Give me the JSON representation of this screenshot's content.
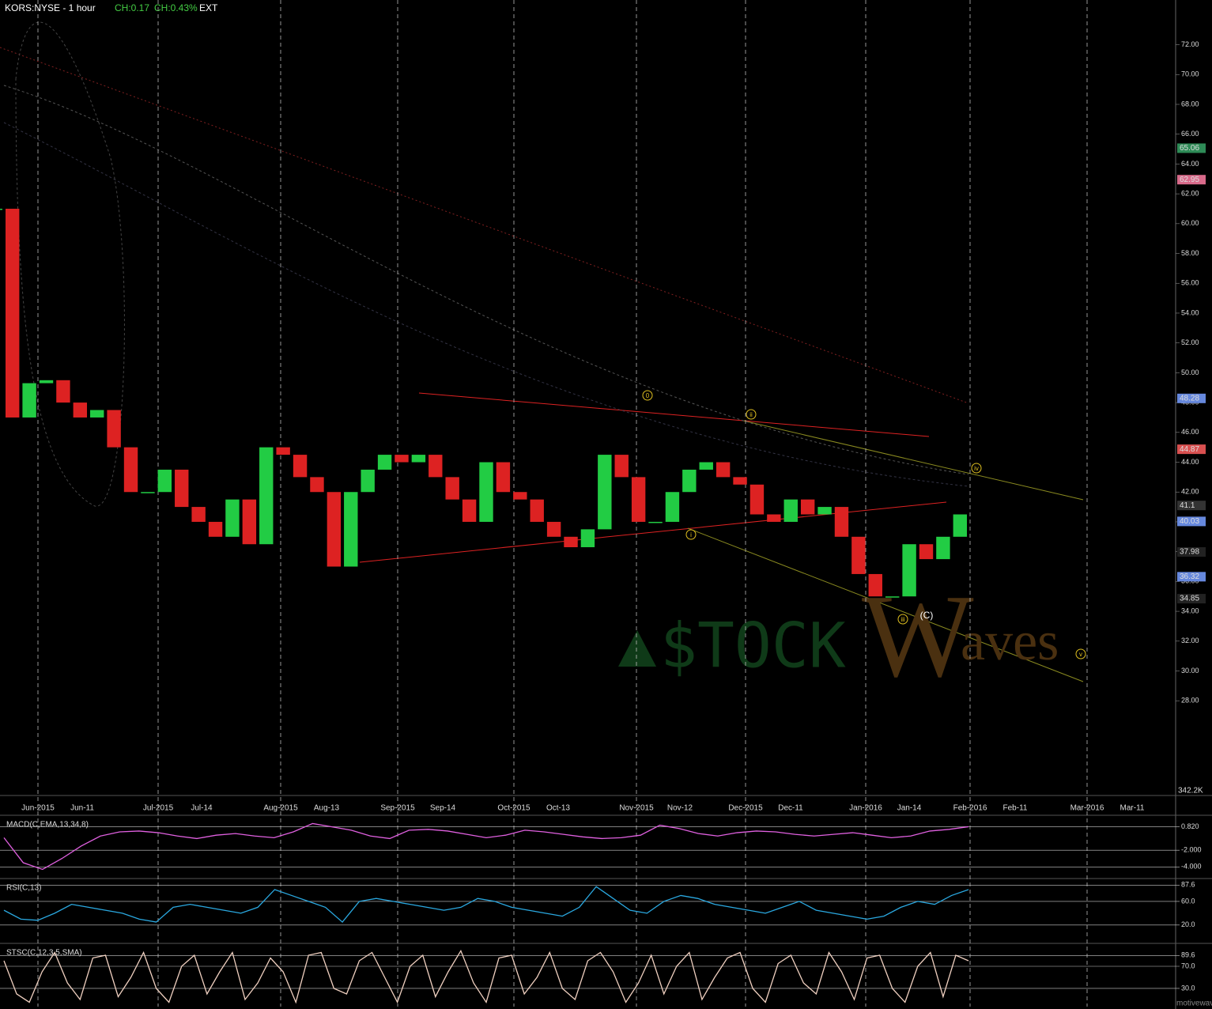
{
  "header": {
    "symbol": "KORS:NYSE - 1 hour",
    "change": "CH:0.17",
    "change_pct": "CH:0.43%",
    "session": "EXT"
  },
  "watermark": "motivewave.com",
  "logo": {
    "left": "$TOCK",
    "mark": "W",
    "right": "aves"
  },
  "annotations": [
    "0",
    "i",
    "ii",
    "iii",
    "iv",
    "v",
    "(C)"
  ],
  "chart_data": [
    {
      "type": "candle",
      "ylim": [
        21.7,
        75.0
      ],
      "yticks": [
        {
          "value": 28,
          "label": "28.00"
        },
        {
          "value": 30,
          "label": "30.00"
        },
        {
          "value": 32,
          "label": "32.00"
        },
        {
          "value": 34,
          "label": "34.00"
        },
        {
          "value": 36,
          "label": "36.00"
        },
        {
          "value": 38,
          "label": "38.00"
        },
        {
          "value": 40,
          "label": "40.00"
        },
        {
          "value": 42,
          "label": "42.00"
        },
        {
          "value": 44,
          "label": "44.00"
        },
        {
          "value": 46,
          "label": "46.00"
        },
        {
          "value": 48,
          "label": "48.00"
        },
        {
          "value": 50,
          "label": "50.00"
        },
        {
          "value": 52,
          "label": "52.00"
        },
        {
          "value": 54,
          "label": "54.00"
        },
        {
          "value": 56,
          "label": "56.00"
        },
        {
          "value": 58,
          "label": "58.00"
        },
        {
          "value": 60,
          "label": "60.00"
        },
        {
          "value": 62,
          "label": "62.00"
        },
        {
          "value": 64,
          "label": "64.00"
        },
        {
          "value": 66,
          "label": "66.00"
        },
        {
          "value": 68,
          "label": "68.00"
        },
        {
          "value": 70,
          "label": "70.00"
        },
        {
          "value": 72,
          "label": "72.00"
        }
      ],
      "x_labels": [
        "Jun-2015",
        "Jun-11",
        "Jul-2015",
        "Jul-14",
        "Aug-2015",
        "Aug-13",
        "Sep-2015",
        "Sep-14",
        "Oct-2015",
        "Oct-13",
        "Nov-2015",
        "Nov-12",
        "Dec-2015",
        "Dec-11",
        "Jan-2016",
        "Jan-14",
        "Feb-2016",
        "Feb-11",
        "Mar-2016",
        "Mar-11"
      ],
      "up_color": "#22cc44",
      "down_color": "#dd2222",
      "values": [
        61,
        47,
        49.3,
        49.5,
        48,
        47,
        47.5,
        45,
        42,
        42,
        43.5,
        41,
        40,
        39,
        41.5,
        38.5,
        45,
        44.5,
        43,
        42,
        37,
        42,
        43.5,
        44.5,
        44,
        44.5,
        43,
        41.5,
        40,
        44,
        42,
        41.5,
        40,
        39,
        38.3,
        39.5,
        44.5,
        43,
        40,
        40,
        42,
        43.5,
        44,
        43,
        42.5,
        40.5,
        40,
        41.5,
        40.5,
        41,
        39,
        36.5,
        35,
        35,
        38.5,
        37.5,
        39,
        40.5
      ],
      "price_labels": [
        {
          "value": 65.06,
          "color": "#2e8b57"
        },
        {
          "value": 62.95,
          "color": "#d86a8a"
        },
        {
          "value": 48.28,
          "color": "#6688dd"
        },
        {
          "value": 44.87,
          "color": "#d85050"
        },
        {
          "value": 41.1,
          "color": "#333333"
        },
        {
          "value": 40.03,
          "color": "#6688dd"
        },
        {
          "value": 37.98,
          "color": "#222222"
        },
        {
          "value": 36.32,
          "color": "#6688dd"
        },
        {
          "value": 34.85,
          "color": "#222222"
        }
      ],
      "volume_label": "342.2K"
    },
    {
      "type": "line",
      "title": "MACD(C,EMA,13,34,8)",
      "color": "#e060e0",
      "ylim": [
        -5.3,
        2.0
      ],
      "yticks": [
        {
          "value": 0.82,
          "label": "0.820"
        },
        {
          "value": -2,
          "label": "-2.000"
        },
        {
          "value": -4,
          "label": "-4.000"
        }
      ],
      "values": [
        -0.5,
        -3.5,
        -4.3,
        -3,
        -1.5,
        -0.3,
        0.2,
        0.3,
        0.1,
        -0.3,
        -0.6,
        -0.2,
        0,
        -0.3,
        -0.5,
        0.2,
        1.2,
        0.8,
        0.4,
        -0.3,
        -0.6,
        0.4,
        0.5,
        0.3,
        -0.1,
        -0.5,
        -0.2,
        0.4,
        0.2,
        -0.1,
        -0.4,
        -0.6,
        -0.5,
        -0.2,
        1,
        0.6,
        0,
        -0.3,
        0.1,
        0.3,
        0.2,
        -0.1,
        -0.3,
        -0.1,
        0.1,
        -0.2,
        -0.5,
        -0.3,
        0.3,
        0.5,
        0.82
      ]
    },
    {
      "type": "line",
      "title": "RSI(C,13)",
      "color": "#2aa8e0",
      "ylim": [
        -7,
        96
      ],
      "yticks": [
        {
          "value": 87.6,
          "label": "87.6"
        },
        {
          "value": 60,
          "label": "60.0"
        },
        {
          "value": 20,
          "label": "20.0"
        }
      ],
      "values": [
        45,
        30,
        28,
        40,
        55,
        50,
        45,
        40,
        30,
        25,
        50,
        55,
        50,
        45,
        40,
        50,
        80,
        70,
        60,
        50,
        25,
        60,
        65,
        60,
        55,
        50,
        45,
        50,
        65,
        60,
        50,
        45,
        40,
        35,
        50,
        85,
        65,
        45,
        40,
        60,
        70,
        65,
        55,
        50,
        45,
        40,
        50,
        60,
        45,
        40,
        35,
        30,
        35,
        50,
        60,
        55,
        70,
        80
      ]
    },
    {
      "type": "line",
      "title": "STSC(C,12,3,5,SMA)",
      "color": "#f0d0c0",
      "ylim": [
        -2.9,
        108.6
      ],
      "yticks": [
        {
          "value": 89.6,
          "label": "89.6"
        },
        {
          "value": 70,
          "label": "70.0"
        },
        {
          "value": 30,
          "label": "30.0"
        }
      ],
      "values": [
        80,
        20,
        5,
        60,
        95,
        40,
        10,
        85,
        90,
        15,
        50,
        95,
        30,
        5,
        70,
        90,
        20,
        60,
        95,
        10,
        40,
        85,
        60,
        5,
        90,
        95,
        30,
        20,
        80,
        95,
        50,
        5,
        70,
        90,
        15,
        60,
        98,
        40,
        5,
        85,
        90,
        20,
        50,
        95,
        30,
        10,
        80,
        95,
        60,
        5,
        40,
        90,
        20,
        70,
        95,
        10,
        50,
        85,
        95,
        30,
        5,
        75,
        90,
        40,
        20,
        95,
        60,
        10,
        85,
        90,
        30,
        5,
        70,
        95,
        15,
        90,
        80
      ]
    }
  ]
}
